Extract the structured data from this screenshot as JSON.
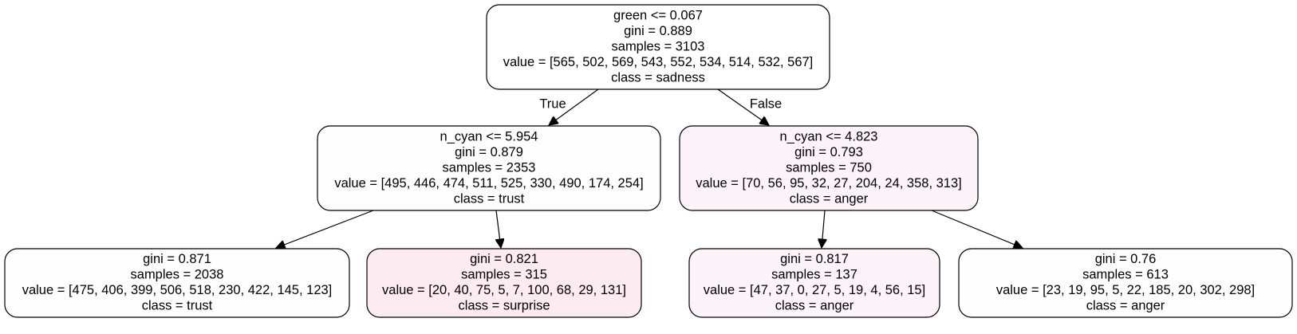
{
  "tree": {
    "nodes": [
      {
        "id": "root",
        "lines": [
          "green <= 0.067",
          "gini = 0.889",
          "samples = 3103",
          "value = [565, 502, 569, 543, 552, 534, 514, 532, 567]",
          "class = sadness"
        ],
        "fill": "#ffffff"
      },
      {
        "id": "left",
        "lines": [
          "n_cyan <= 5.954",
          "gini = 0.879",
          "samples = 2353",
          "value = [495, 446, 474, 511, 525, 330, 490, 174, 254]",
          "class = trust"
        ],
        "fill": "#fdfdfd"
      },
      {
        "id": "right",
        "lines": [
          "n_cyan <= 4.823",
          "gini = 0.793",
          "samples = 750",
          "value = [70, 56, 95, 32, 27, 204, 24, 358, 313]",
          "class = anger"
        ],
        "fill": "#fdf3fb"
      },
      {
        "id": "left-left",
        "lines": [
          "gini = 0.871",
          "samples = 2038",
          "value = [475, 406, 399, 506, 518, 230, 422, 145, 123]",
          "class = trust"
        ],
        "fill": "#fefefe"
      },
      {
        "id": "left-right",
        "lines": [
          "gini = 0.821",
          "samples = 315",
          "value = [20, 40, 75, 5, 7, 100, 68, 29, 131]",
          "class = surprise"
        ],
        "fill": "#fcebf1"
      },
      {
        "id": "right-left",
        "lines": [
          "gini = 0.817",
          "samples = 137",
          "value = [47, 37, 0, 27, 5, 19, 4, 56, 15]",
          "class = anger"
        ],
        "fill": "#fdf3fb"
      },
      {
        "id": "right-right",
        "lines": [
          "gini = 0.76",
          "samples = 613",
          "value = [23, 19, 95, 5, 22, 185, 20, 302, 298]",
          "class = anger"
        ],
        "fill": "#fefefe"
      }
    ],
    "edges": [
      {
        "from": "root",
        "to": "left",
        "label": "True"
      },
      {
        "from": "root",
        "to": "right",
        "label": "False"
      },
      {
        "from": "left",
        "to": "left-left",
        "label": ""
      },
      {
        "from": "left",
        "to": "left-right",
        "label": ""
      },
      {
        "from": "right",
        "to": "right-left",
        "label": ""
      },
      {
        "from": "right",
        "to": "right-right",
        "label": ""
      }
    ]
  }
}
